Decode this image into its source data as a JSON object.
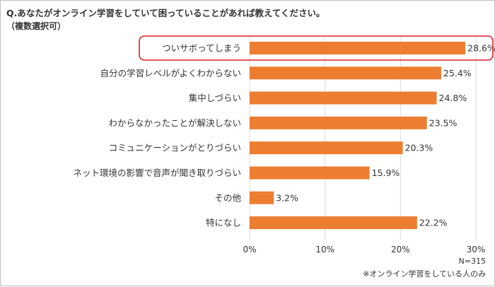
{
  "chart_data": {
    "type": "bar",
    "orientation": "horizontal",
    "title": "Q.あなたがオンライン学習をしていて困っていることがあれば教えてください。",
    "subtitle": "（複数選択可）",
    "categories": [
      "ついサボってしまう",
      "自分の学習レベルがよくわからない",
      "集中しづらい",
      "わからなかったことが解決しない",
      "コミュニケーションがとりづらい",
      "ネット環境の影響で音声が聞き取りづらい",
      "その他",
      "特になし"
    ],
    "values": [
      28.6,
      25.4,
      24.8,
      23.5,
      20.3,
      15.9,
      3.2,
      22.2
    ],
    "value_labels": [
      "28.6%",
      "25.4%",
      "24.8%",
      "23.5%",
      "20.3%",
      "15.9%",
      "3.2%",
      "22.2%"
    ],
    "xlim": [
      0,
      30
    ],
    "xticks": [
      0,
      10,
      20,
      30
    ],
    "xtick_labels": [
      "0%",
      "10%",
      "20%",
      "30%"
    ],
    "grid": true,
    "highlighted_category": "ついサボってしまう",
    "colors": {
      "bar": "#ED7D31",
      "highlight": "#E0202A",
      "grid": "#d9d9d9"
    },
    "notes": [
      "N=315",
      "※オンライン学習をしている人のみ"
    ]
  }
}
